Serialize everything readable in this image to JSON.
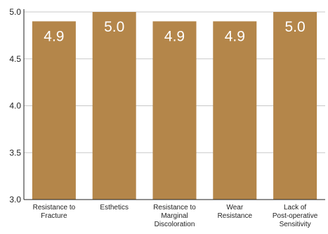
{
  "chart_data": {
    "type": "bar",
    "title": "",
    "xlabel": "",
    "ylabel": "",
    "categories": [
      [
        "Resistance to",
        "Fracture"
      ],
      [
        "Esthetics"
      ],
      [
        "Resistance to",
        "Marginal",
        "Discoloration"
      ],
      [
        "Wear",
        "Resistance"
      ],
      [
        "Lack of",
        "Post-operative",
        "Sensitivity"
      ]
    ],
    "values": [
      4.9,
      5.0,
      4.9,
      4.9,
      5.0
    ],
    "value_labels": [
      "4.9",
      "5.0",
      "4.9",
      "4.9",
      "5.0"
    ],
    "ylim": [
      3.0,
      5.0
    ],
    "yticks": [
      "3.0",
      "3.5",
      "4.0",
      "4.5",
      "5.0"
    ],
    "grid": "horizontal",
    "legend": "none",
    "colors": {
      "bar": "#B4864A",
      "grid": "#c9c9c9",
      "axis": "#222222",
      "bar_label": "#ffffff"
    }
  }
}
